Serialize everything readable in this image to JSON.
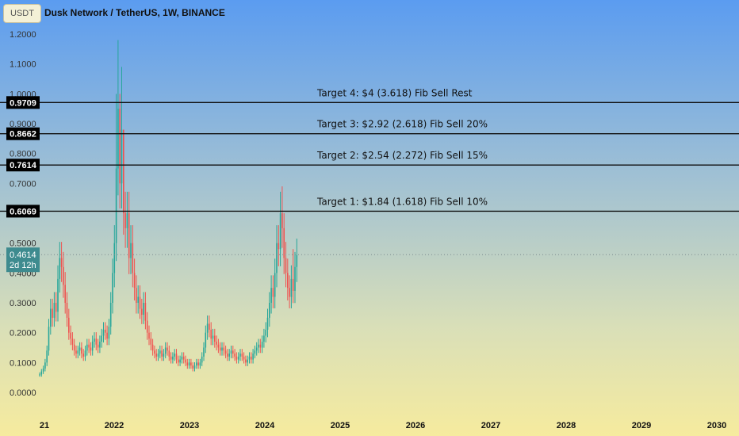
{
  "header": {
    "currency": "USDT",
    "title": "Dusk Network / TetherUS, 1W, BINANCE"
  },
  "colors": {
    "bull": "#26a69a",
    "bear": "#ef5350",
    "level_line": "#111111",
    "current_price_badge": "#3e8b8f"
  },
  "chart_data": {
    "type": "candlestick",
    "ylim": [
      0.0,
      1.25
    ],
    "y_ticks": [
      "0.0000",
      "0.1000",
      "0.2000",
      "0.3000",
      "0.4000",
      "0.5000",
      "0.6000",
      "0.7000",
      "0.8000",
      "0.9000",
      "1.0000",
      "1.1000",
      "1.2000"
    ],
    "x_ticks": [
      "21",
      "2022",
      "2023",
      "2024",
      "2025",
      "2026",
      "2027",
      "2028",
      "2029",
      "2030"
    ],
    "levels": [
      {
        "value": 0.9709,
        "badge": "0.9709",
        "label": "Target 4: $4 (3.618) Fib Sell Rest"
      },
      {
        "value": 0.8662,
        "badge": "0.8662",
        "label": "Target 3: $2.92 (2.618) Fib Sell 20%"
      },
      {
        "value": 0.7614,
        "badge": "0.7614",
        "label": "Target 2: $2.54 (2.272) Fib Sell 15%"
      },
      {
        "value": 0.6069,
        "badge": "0.6069",
        "label": "Target 1: $1.84 (1.618) Fib Sell 10%"
      }
    ],
    "current_price": {
      "value": 0.4614,
      "label": "0.4614",
      "countdown": "2d 12h"
    },
    "weekly_closes": [
      0.06,
      0.07,
      0.08,
      0.1,
      0.14,
      0.22,
      0.28,
      0.25,
      0.3,
      0.27,
      0.38,
      0.45,
      0.42,
      0.36,
      0.3,
      0.25,
      0.2,
      0.18,
      0.16,
      0.14,
      0.13,
      0.14,
      0.15,
      0.13,
      0.12,
      0.14,
      0.16,
      0.15,
      0.14,
      0.17,
      0.18,
      0.16,
      0.15,
      0.17,
      0.19,
      0.21,
      0.2,
      0.18,
      0.22,
      0.3,
      0.4,
      0.5,
      0.75,
      0.95,
      0.7,
      0.88,
      0.6,
      0.55,
      0.6,
      0.45,
      0.5,
      0.4,
      0.35,
      0.3,
      0.32,
      0.28,
      0.26,
      0.3,
      0.24,
      0.2,
      0.18,
      0.16,
      0.14,
      0.13,
      0.12,
      0.13,
      0.14,
      0.12,
      0.13,
      0.15,
      0.14,
      0.12,
      0.11,
      0.12,
      0.13,
      0.11,
      0.1,
      0.11,
      0.12,
      0.11,
      0.1,
      0.09,
      0.1,
      0.09,
      0.08,
      0.09,
      0.1,
      0.09,
      0.1,
      0.12,
      0.15,
      0.2,
      0.23,
      0.21,
      0.18,
      0.19,
      0.17,
      0.16,
      0.15,
      0.14,
      0.15,
      0.14,
      0.13,
      0.12,
      0.13,
      0.14,
      0.13,
      0.12,
      0.11,
      0.12,
      0.13,
      0.12,
      0.11,
      0.1,
      0.11,
      0.12,
      0.11,
      0.13,
      0.14,
      0.15,
      0.16,
      0.15,
      0.17,
      0.19,
      0.21,
      0.25,
      0.3,
      0.35,
      0.32,
      0.4,
      0.5,
      0.48,
      0.6,
      0.55,
      0.45,
      0.4,
      0.35,
      0.32,
      0.38,
      0.34,
      0.42,
      0.46
    ],
    "weekly_highs": {
      "42": 1.0,
      "43": 1.18,
      "44": 1.0,
      "45": 1.09,
      "46": 0.7,
      "133": 0.69,
      "134": 0.6,
      "139": 0.48
    }
  }
}
